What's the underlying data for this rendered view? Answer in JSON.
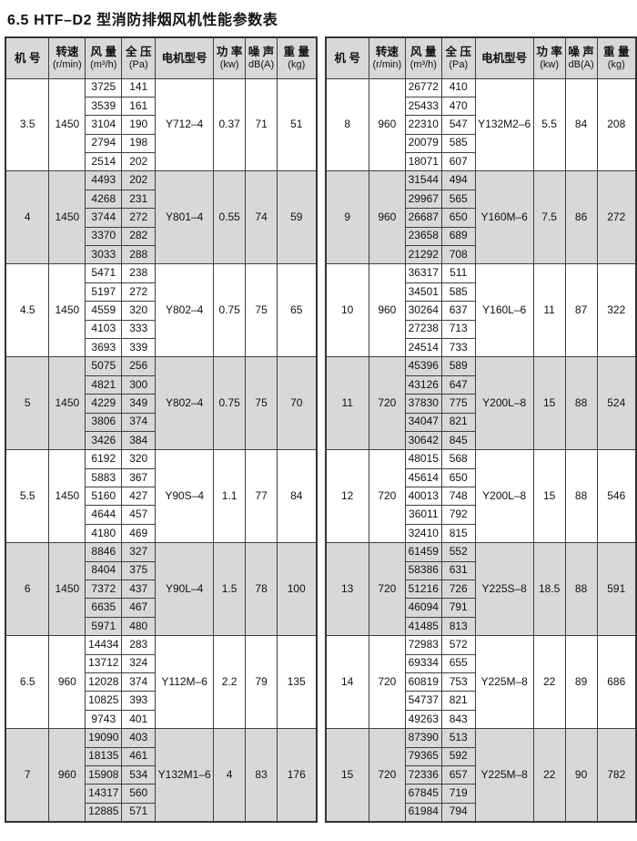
{
  "title": "6.5 HTF–D2 型消防排烟风机性能参数表",
  "columns": [
    {
      "line1": "机 号",
      "line2": ""
    },
    {
      "line1": "转速",
      "line2": "(r/min)"
    },
    {
      "line1": "风 量",
      "line2": "(m³/h)"
    },
    {
      "line1": "全 压",
      "line2": "(Pa)"
    },
    {
      "line1": "电机型号",
      "line2": ""
    },
    {
      "line1": "功 率",
      "line2": "(kw)"
    },
    {
      "line1": "噪 声",
      "line2": "dB(A)"
    },
    {
      "line1": "重 量",
      "line2": "(kg)"
    }
  ],
  "colors": {
    "header_bg": "#d8d8d8",
    "shaded_group_bg": "#d8d8d8",
    "border": "#3f3f3f",
    "text": "#111111"
  },
  "tables": [
    {
      "id": "left",
      "groups": [
        {
          "machine": "3.5",
          "speed": "1450",
          "points": [
            [
              "3725",
              "141"
            ],
            [
              "3539",
              "161"
            ],
            [
              "3104",
              "190"
            ],
            [
              "2794",
              "198"
            ],
            [
              "2514",
              "202"
            ]
          ],
          "motor": "Y712–4",
          "power": "0.37",
          "noise": "71",
          "weight": "51",
          "shaded": false
        },
        {
          "machine": "4",
          "speed": "1450",
          "points": [
            [
              "4493",
              "202"
            ],
            [
              "4268",
              "231"
            ],
            [
              "3744",
              "272"
            ],
            [
              "3370",
              "282"
            ],
            [
              "3033",
              "288"
            ]
          ],
          "motor": "Y801–4",
          "power": "0.55",
          "noise": "74",
          "weight": "59",
          "shaded": true
        },
        {
          "machine": "4.5",
          "speed": "1450",
          "points": [
            [
              "5471",
              "238"
            ],
            [
              "5197",
              "272"
            ],
            [
              "4559",
              "320"
            ],
            [
              "4103",
              "333"
            ],
            [
              "3693",
              "339"
            ]
          ],
          "motor": "Y802–4",
          "power": "0.75",
          "noise": "75",
          "weight": "65",
          "shaded": false
        },
        {
          "machine": "5",
          "speed": "1450",
          "points": [
            [
              "5075",
              "256"
            ],
            [
              "4821",
              "300"
            ],
            [
              "4229",
              "349"
            ],
            [
              "3806",
              "374"
            ],
            [
              "3426",
              "384"
            ]
          ],
          "motor": "Y802–4",
          "power": "0.75",
          "noise": "75",
          "weight": "70",
          "shaded": true
        },
        {
          "machine": "5.5",
          "speed": "1450",
          "points": [
            [
              "6192",
              "320"
            ],
            [
              "5883",
              "367"
            ],
            [
              "5160",
              "427"
            ],
            [
              "4644",
              "457"
            ],
            [
              "4180",
              "469"
            ]
          ],
          "motor": "Y90S–4",
          "power": "1.1",
          "noise": "77",
          "weight": "84",
          "shaded": false
        },
        {
          "machine": "6",
          "speed": "1450",
          "points": [
            [
              "8846",
              "327"
            ],
            [
              "8404",
              "375"
            ],
            [
              "7372",
              "437"
            ],
            [
              "6635",
              "467"
            ],
            [
              "5971",
              "480"
            ]
          ],
          "motor": "Y90L–4",
          "power": "1.5",
          "noise": "78",
          "weight": "100",
          "shaded": true
        },
        {
          "machine": "6.5",
          "speed": "960",
          "points": [
            [
              "14434",
              "283"
            ],
            [
              "13712",
              "324"
            ],
            [
              "12028",
              "374"
            ],
            [
              "10825",
              "393"
            ],
            [
              "9743",
              "401"
            ]
          ],
          "motor": "Y112M–6",
          "power": "2.2",
          "noise": "79",
          "weight": "135",
          "shaded": false
        },
        {
          "machine": "7",
          "speed": "960",
          "points": [
            [
              "19090",
              "403"
            ],
            [
              "18135",
              "461"
            ],
            [
              "15908",
              "534"
            ],
            [
              "14317",
              "560"
            ],
            [
              "12885",
              "571"
            ]
          ],
          "motor": "Y132M1–6",
          "power": "4",
          "noise": "83",
          "weight": "176",
          "shaded": true
        }
      ]
    },
    {
      "id": "right",
      "groups": [
        {
          "machine": "8",
          "speed": "960",
          "points": [
            [
              "26772",
              "410"
            ],
            [
              "25433",
              "470"
            ],
            [
              "22310",
              "547"
            ],
            [
              "20079",
              "585"
            ],
            [
              "18071",
              "607"
            ]
          ],
          "motor": "Y132M2–6",
          "power": "5.5",
          "noise": "84",
          "weight": "208",
          "shaded": false
        },
        {
          "machine": "9",
          "speed": "960",
          "points": [
            [
              "31544",
              "494"
            ],
            [
              "29967",
              "565"
            ],
            [
              "26687",
              "650"
            ],
            [
              "23658",
              "689"
            ],
            [
              "21292",
              "708"
            ]
          ],
          "motor": "Y160M–6",
          "power": "7.5",
          "noise": "86",
          "weight": "272",
          "shaded": true
        },
        {
          "machine": "10",
          "speed": "960",
          "points": [
            [
              "36317",
              "511"
            ],
            [
              "34501",
              "585"
            ],
            [
              "30264",
              "637"
            ],
            [
              "27238",
              "713"
            ],
            [
              "24514",
              "733"
            ]
          ],
          "motor": "Y160L–6",
          "power": "11",
          "noise": "87",
          "weight": "322",
          "shaded": false
        },
        {
          "machine": "11",
          "speed": "720",
          "points": [
            [
              "45396",
              "589"
            ],
            [
              "43126",
              "647"
            ],
            [
              "37830",
              "775"
            ],
            [
              "34047",
              "821"
            ],
            [
              "30642",
              "845"
            ]
          ],
          "motor": "Y200L–8",
          "power": "15",
          "noise": "88",
          "weight": "524",
          "shaded": true
        },
        {
          "machine": "12",
          "speed": "720",
          "points": [
            [
              "48015",
              "568"
            ],
            [
              "45614",
              "650"
            ],
            [
              "40013",
              "748"
            ],
            [
              "36011",
              "792"
            ],
            [
              "32410",
              "815"
            ]
          ],
          "motor": "Y200L–8",
          "power": "15",
          "noise": "88",
          "weight": "546",
          "shaded": false
        },
        {
          "machine": "13",
          "speed": "720",
          "points": [
            [
              "61459",
              "552"
            ],
            [
              "58386",
              "631"
            ],
            [
              "51216",
              "726"
            ],
            [
              "46094",
              "791"
            ],
            [
              "41485",
              "813"
            ]
          ],
          "motor": "Y225S–8",
          "power": "18.5",
          "noise": "88",
          "weight": "591",
          "shaded": true
        },
        {
          "machine": "14",
          "speed": "720",
          "points": [
            [
              "72983",
              "572"
            ],
            [
              "69334",
              "655"
            ],
            [
              "60819",
              "753"
            ],
            [
              "54737",
              "821"
            ],
            [
              "49263",
              "843"
            ]
          ],
          "motor": "Y225M–8",
          "power": "22",
          "noise": "89",
          "weight": "686",
          "shaded": false
        },
        {
          "machine": "15",
          "speed": "720",
          "points": [
            [
              "87390",
              "513"
            ],
            [
              "79365",
              "592"
            ],
            [
              "72336",
              "657"
            ],
            [
              "67845",
              "719"
            ],
            [
              "61984",
              "794"
            ]
          ],
          "motor": "Y225M–8",
          "power": "22",
          "noise": "90",
          "weight": "782",
          "shaded": true
        }
      ]
    }
  ]
}
